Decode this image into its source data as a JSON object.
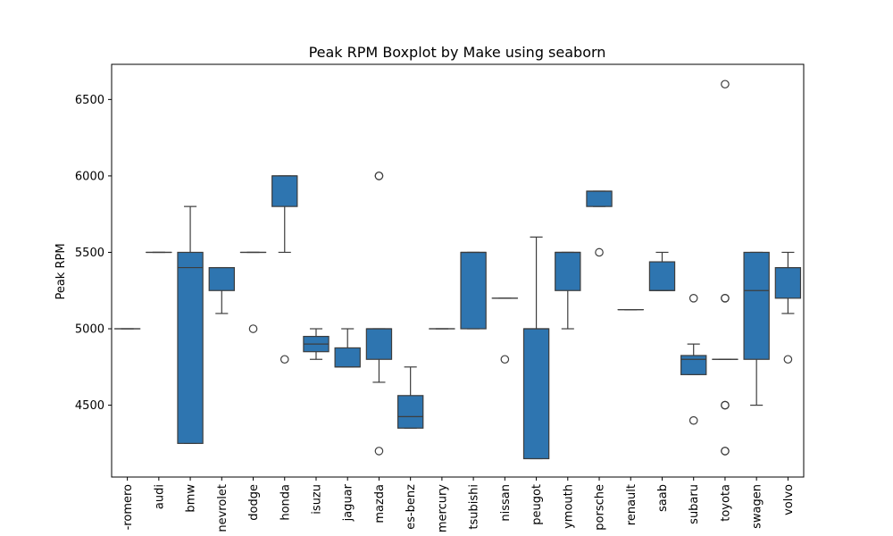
{
  "chart_data": {
    "type": "boxplot",
    "title": "Peak RPM Boxplot by Make using seaborn",
    "xlabel": "",
    "ylabel": "Peak RPM",
    "ylim": [
      4030,
      6730
    ],
    "yticks": [
      4500,
      5000,
      5500,
      6000,
      6500
    ],
    "grid": false,
    "legend": "none",
    "box_color": "#2e75b0",
    "line_color": "#3d3d3d",
    "categories": [
      "alfa-romero",
      "audi",
      "bmw",
      "chevrolet",
      "dodge",
      "honda",
      "isuzu",
      "jaguar",
      "mazda",
      "mercedes-benz",
      "mercury",
      "mitsubishi",
      "nissan",
      "peugot",
      "plymouth",
      "porsche",
      "renault",
      "saab",
      "subaru",
      "toyota",
      "volkswagen",
      "volvo"
    ],
    "tick_labels": [
      "-romero",
      "audi",
      "bmw",
      "nevrolet",
      "dodge",
      "honda",
      "isuzu",
      "jaguar",
      "mazda",
      "es-benz",
      "mercury",
      "tsubishi",
      "nissan",
      "peugot",
      "ymouth",
      "porsche",
      "renault",
      "saab",
      "subaru",
      "toyota",
      "swagen",
      "volvo"
    ],
    "boxes": [
      {
        "whislo": 5000,
        "q1": 5000,
        "med": 5000,
        "q3": 5000,
        "whishi": 5000,
        "fliers": []
      },
      {
        "whislo": 5500,
        "q1": 5500,
        "med": 5500,
        "q3": 5500,
        "whishi": 5500,
        "fliers": []
      },
      {
        "whislo": 4250,
        "q1": 4250,
        "med": 5400,
        "q3": 5500,
        "whishi": 5800,
        "fliers": []
      },
      {
        "whislo": 5100,
        "q1": 5250,
        "med": 5400,
        "q3": 5400,
        "whishi": 5400,
        "fliers": []
      },
      {
        "whislo": 5500,
        "q1": 5500,
        "med": 5500,
        "q3": 5500,
        "whishi": 5500,
        "fliers": [
          5000
        ]
      },
      {
        "whislo": 5500,
        "q1": 5800,
        "med": 6000,
        "q3": 6000,
        "whishi": 6000,
        "fliers": [
          4800
        ]
      },
      {
        "whislo": 4800,
        "q1": 4850,
        "med": 4900,
        "q3": 4950,
        "whishi": 5000,
        "fliers": []
      },
      {
        "whislo": 4750,
        "q1": 4750,
        "med": 4750,
        "q3": 4875,
        "whishi": 5000,
        "fliers": []
      },
      {
        "whislo": 4650,
        "q1": 4800,
        "med": 5000,
        "q3": 5000,
        "whishi": 5000,
        "fliers": [
          4200,
          6000,
          6000
        ]
      },
      {
        "whislo": 4350,
        "q1": 4350,
        "med": 4425,
        "q3": 4563,
        "whishi": 4750,
        "fliers": []
      },
      {
        "whislo": 5000,
        "q1": 5000,
        "med": 5000,
        "q3": 5000,
        "whishi": 5000,
        "fliers": []
      },
      {
        "whislo": 5000,
        "q1": 5000,
        "med": 5500,
        "q3": 5500,
        "whishi": 5500,
        "fliers": []
      },
      {
        "whislo": 5200,
        "q1": 5200,
        "med": 5200,
        "q3": 5200,
        "whishi": 5200,
        "fliers": [
          4800
        ]
      },
      {
        "whislo": 4150,
        "q1": 4150,
        "med": 5000,
        "q3": 5000,
        "whishi": 5600,
        "fliers": []
      },
      {
        "whislo": 5000,
        "q1": 5250,
        "med": 5500,
        "q3": 5500,
        "whishi": 5500,
        "fliers": []
      },
      {
        "whislo": 5800,
        "q1": 5800,
        "med": 5900,
        "q3": 5900,
        "whishi": 5900,
        "fliers": [
          5500
        ]
      },
      {
        "whislo": 5125,
        "q1": 5125,
        "med": 5125,
        "q3": 5125,
        "whishi": 5125,
        "fliers": []
      },
      {
        "whislo": 5250,
        "q1": 5250,
        "med": 5250,
        "q3": 5438,
        "whishi": 5500,
        "fliers": []
      },
      {
        "whislo": 4700,
        "q1": 4700,
        "med": 4800,
        "q3": 4825,
        "whishi": 4900,
        "fliers": [
          5200,
          4400
        ]
      },
      {
        "whislo": 4800,
        "q1": 4800,
        "med": 4800,
        "q3": 4800,
        "whishi": 4800,
        "fliers": [
          6600,
          5200,
          5200,
          4500,
          4500,
          4200,
          4200
        ]
      },
      {
        "whislo": 4500,
        "q1": 4800,
        "med": 5250,
        "q3": 5500,
        "whishi": 5500,
        "fliers": []
      },
      {
        "whislo": 5100,
        "q1": 5200,
        "med": 5400,
        "q3": 5400,
        "whishi": 5500,
        "fliers": [
          4800
        ]
      }
    ]
  }
}
